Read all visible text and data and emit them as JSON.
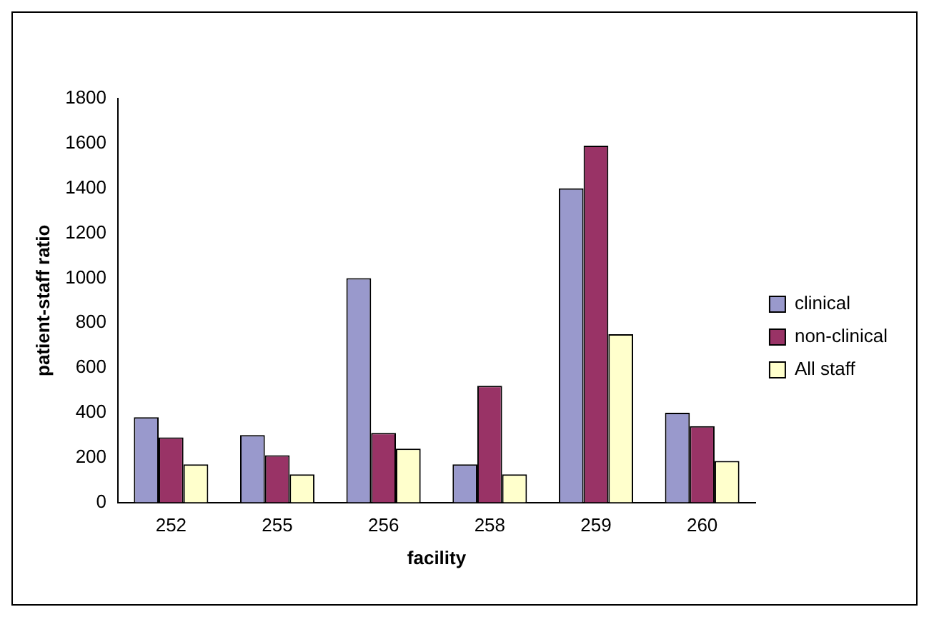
{
  "chart_data": {
    "type": "bar",
    "xlabel": "facility",
    "ylabel": "patient-staff ratio",
    "categories": [
      "252",
      "255",
      "256",
      "258",
      "259",
      "260"
    ],
    "series": [
      {
        "name": "clinical",
        "color": "#9999cc",
        "values": [
          380,
          300,
          1000,
          170,
          1400,
          400
        ]
      },
      {
        "name": "non-clinical",
        "color": "#993366",
        "values": [
          290,
          210,
          310,
          520,
          1590,
          340
        ]
      },
      {
        "name": "All staff",
        "color": "#ffffcc",
        "values": [
          170,
          125,
          240,
          125,
          750,
          185
        ]
      }
    ],
    "ylim": [
      0,
      1800
    ],
    "yticks": [
      0,
      200,
      400,
      600,
      800,
      1000,
      1200,
      1400,
      1600,
      1800
    ],
    "grid": false,
    "legend": "right"
  }
}
